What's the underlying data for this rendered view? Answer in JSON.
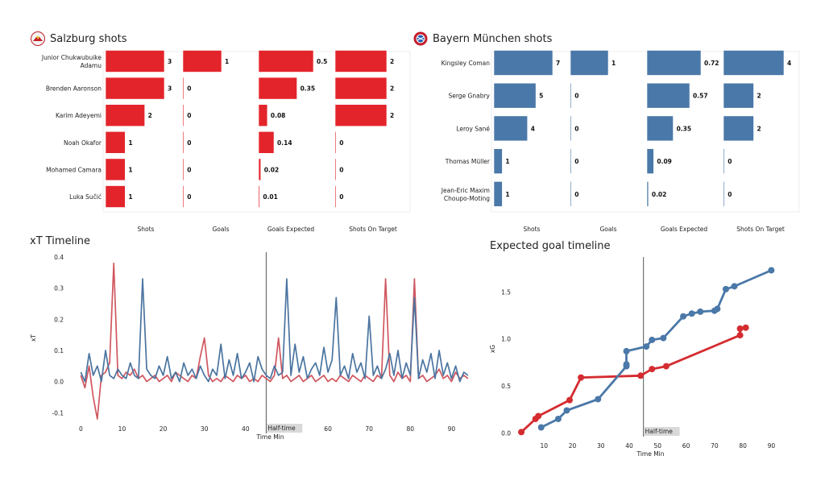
{
  "salzburg": {
    "title": "Salzburg shots",
    "color": "#e3242b",
    "players": [
      [
        "Junior Chukwubuike",
        "Adamu"
      ],
      [
        "Brenden  Aaronson"
      ],
      [
        "Karim Adeyemi"
      ],
      [
        "Noah Okafor"
      ],
      [
        "Mohamed Camara"
      ],
      [
        "Luka Sučić"
      ]
    ],
    "columns": [
      "Shots",
      "Goals",
      "Goals Expected",
      "Shots On Target"
    ],
    "values": [
      [
        3,
        1,
        0.5,
        2
      ],
      [
        3,
        0,
        0.35,
        2
      ],
      [
        2,
        0,
        0.08,
        2
      ],
      [
        1,
        0,
        0.14,
        0
      ],
      [
        1,
        0,
        0.02,
        0
      ],
      [
        1,
        0,
        0.01,
        0
      ]
    ]
  },
  "bayern": {
    "title": "Bayern München shots",
    "color": "#4a78a8",
    "players": [
      [
        "Kingsley Coman"
      ],
      [
        "Serge  Gnabry"
      ],
      [
        "Leroy Sané"
      ],
      [
        "Thomas Müller"
      ],
      [
        "Jean-Eric Maxim",
        "Choupo-Moting"
      ]
    ],
    "columns": [
      "Shots",
      "Goals",
      "Goals Expected",
      "Shots On Target"
    ],
    "values": [
      [
        7,
        1,
        0.72,
        4
      ],
      [
        5,
        0,
        0.57,
        2
      ],
      [
        4,
        0,
        0.35,
        2
      ],
      [
        1,
        0,
        0.09,
        0
      ],
      [
        1,
        0,
        0.02,
        0
      ]
    ]
  },
  "chart_data": [
    {
      "type": "bar",
      "title": "Salzburg shots",
      "categories": [
        "Junior Chukwubuike Adamu",
        "Brenden  Aaronson",
        "Karim Adeyemi",
        "Noah Okafor",
        "Mohamed Camara",
        "Luka Sučić"
      ],
      "series": [
        {
          "name": "Shots",
          "values": [
            3,
            3,
            2,
            1,
            1,
            1
          ]
        },
        {
          "name": "Goals",
          "values": [
            1,
            0,
            0,
            0,
            0,
            0
          ]
        },
        {
          "name": "Goals Expected",
          "values": [
            0.5,
            0.35,
            0.08,
            0.14,
            0.02,
            0.01
          ]
        },
        {
          "name": "Shots On Target",
          "values": [
            2,
            2,
            2,
            0,
            0,
            0
          ]
        }
      ]
    },
    {
      "type": "bar",
      "title": "Bayern München shots",
      "categories": [
        "Kingsley Coman",
        "Serge  Gnabry",
        "Leroy Sané",
        "Thomas Müller",
        "Jean-Eric Maxim Choupo-Moting"
      ],
      "series": [
        {
          "name": "Shots",
          "values": [
            7,
            5,
            4,
            1,
            1
          ]
        },
        {
          "name": "Goals",
          "values": [
            1,
            0,
            0,
            0,
            0
          ]
        },
        {
          "name": "Goals Expected",
          "values": [
            0.72,
            0.57,
            0.35,
            0.09,
            0.02
          ]
        },
        {
          "name": "Shots On Target",
          "values": [
            4,
            2,
            2,
            0,
            0
          ]
        }
      ]
    },
    {
      "type": "line",
      "title": "xT Timeline",
      "xlabel": "Time Min",
      "ylabel": "xT",
      "xlim": [
        -3,
        95
      ],
      "ylim": [
        -0.12,
        0.4
      ],
      "xticks": [
        0,
        10,
        20,
        30,
        40,
        50,
        60,
        70,
        80,
        90
      ],
      "yticks": [
        -0.1,
        0.0,
        0.1,
        0.2,
        0.3,
        0.4
      ],
      "ytick_labels": [
        "-0.1",
        "0.0",
        "0.1",
        "0.2",
        "0.3",
        "0.4"
      ],
      "halftime": {
        "x": 45,
        "label": "Half-time"
      },
      "series": [
        {
          "color": "#d0575f",
          "x": [
            0,
            1,
            2,
            3,
            4,
            5,
            6,
            7,
            8,
            9,
            10,
            11,
            12,
            13,
            14,
            15,
            16,
            17,
            18,
            19,
            20,
            21,
            22,
            23,
            24,
            25,
            26,
            27,
            28,
            29,
            30,
            31,
            32,
            33,
            34,
            35,
            36,
            37,
            38,
            39,
            40,
            41,
            42,
            43,
            44,
            45,
            46,
            47,
            48,
            49,
            50,
            51,
            52,
            53,
            54,
            55,
            56,
            57,
            58,
            59,
            60,
            61,
            62,
            63,
            64,
            65,
            66,
            67,
            68,
            69,
            70,
            71,
            72,
            73,
            74,
            75,
            76,
            77,
            78,
            79,
            80,
            81,
            82,
            83,
            84,
            85,
            86,
            87,
            88,
            89,
            90,
            91,
            92,
            93,
            94
          ],
          "y": [
            0.02,
            -0.02,
            0.05,
            -0.05,
            -0.12,
            0.02,
            0.03,
            0.06,
            0.38,
            0.02,
            0.01,
            0.03,
            0.02,
            0.04,
            0.01,
            0.02,
            0.0,
            0.01,
            0.02,
            0.0,
            0.01,
            0.02,
            0.0,
            0.03,
            0.02,
            0.01,
            0.0,
            0.02,
            0.01,
            0.08,
            0.14,
            0.02,
            0.0,
            0.01,
            0.0,
            0.02,
            0.01,
            0.0,
            0.02,
            0.01,
            0.02,
            0.0,
            0.01,
            0.0,
            0.02,
            0.01,
            0.0,
            0.02,
            0.14,
            0.01,
            0.02,
            0.0,
            0.01,
            0.02,
            0.0,
            0.01,
            0.02,
            0.0,
            0.01,
            0.02,
            0.0,
            0.01,
            0.0,
            0.02,
            0.01,
            0.0,
            0.02,
            0.01,
            0.0,
            0.02,
            0.01,
            0.0,
            0.02,
            0.01,
            0.33,
            0.02,
            0.0,
            0.03,
            0.01,
            0.02,
            0.0,
            0.33,
            0.01,
            0.02,
            0.0,
            0.01,
            0.02,
            0.04,
            0.01,
            0.02,
            0.0,
            0.03,
            0.01,
            0.02,
            0.01
          ]
        },
        {
          "color": "#4a74a0",
          "x": [
            0,
            1,
            2,
            3,
            4,
            5,
            6,
            7,
            8,
            9,
            10,
            11,
            12,
            13,
            14,
            15,
            16,
            17,
            18,
            19,
            20,
            21,
            22,
            23,
            24,
            25,
            26,
            27,
            28,
            29,
            30,
            31,
            32,
            33,
            34,
            35,
            36,
            37,
            38,
            39,
            40,
            41,
            42,
            43,
            44,
            45,
            46,
            47,
            48,
            49,
            50,
            51,
            52,
            53,
            54,
            55,
            56,
            57,
            58,
            59,
            60,
            61,
            62,
            63,
            64,
            65,
            66,
            67,
            68,
            69,
            70,
            71,
            72,
            73,
            74,
            75,
            76,
            77,
            78,
            79,
            80,
            81,
            82,
            83,
            84,
            85,
            86,
            87,
            88,
            89,
            90,
            91,
            92,
            93,
            94
          ],
          "y": [
            0.03,
            0.0,
            0.09,
            0.02,
            0.05,
            0.0,
            0.1,
            0.02,
            0.01,
            0.04,
            0.02,
            0.01,
            0.06,
            0.02,
            0.01,
            0.33,
            0.04,
            0.02,
            0.01,
            0.05,
            0.02,
            0.08,
            0.01,
            0.03,
            0.0,
            0.06,
            0.02,
            0.04,
            0.01,
            0.05,
            0.02,
            0.0,
            0.04,
            0.02,
            0.12,
            0.01,
            0.07,
            0.02,
            0.09,
            0.01,
            0.03,
            0.06,
            0.0,
            0.08,
            0.04,
            0.02,
            0.01,
            0.05,
            0.02,
            0.03,
            0.33,
            0.02,
            0.12,
            0.03,
            0.08,
            0.01,
            0.04,
            0.06,
            0.02,
            0.11,
            0.03,
            0.07,
            0.27,
            0.02,
            0.05,
            0.01,
            0.09,
            0.03,
            0.06,
            0.01,
            0.21,
            0.02,
            0.05,
            0.01,
            0.04,
            0.09,
            0.02,
            0.1,
            0.01,
            0.06,
            0.02,
            0.27,
            0.01,
            0.07,
            0.03,
            0.09,
            0.01,
            0.1,
            0.02,
            0.06,
            0.01,
            0.05,
            0.0,
            0.03,
            0.02
          ]
        }
      ]
    },
    {
      "type": "line",
      "title": "Expected goal timeline",
      "xlabel": "Time Min",
      "ylabel": "xG",
      "xlim": [
        0,
        95
      ],
      "ylim": [
        -0.03,
        1.82
      ],
      "xticks": [
        10,
        20,
        30,
        40,
        50,
        60,
        70,
        80,
        90
      ],
      "yticks": [
        0.0,
        0.5,
        1.0,
        1.5
      ],
      "ytick_labels": [
        "0.0",
        "0.5",
        "1.0",
        "1.5"
      ],
      "halftime": {
        "x": 45,
        "label": "Half-time"
      },
      "series": [
        {
          "color": "#d42c30",
          "x": [
            2,
            7,
            8,
            19,
            23,
            44,
            48,
            53,
            79,
            79,
            81
          ],
          "y": [
            0.01,
            0.15,
            0.18,
            0.35,
            0.59,
            0.61,
            0.68,
            0.71,
            1.04,
            1.11,
            1.12
          ]
        },
        {
          "color": "#4a78a8",
          "x": [
            9,
            15,
            18,
            29,
            39,
            39,
            39,
            46,
            48,
            52,
            59,
            62,
            65,
            70,
            71,
            74,
            77,
            90
          ],
          "y": [
            0.06,
            0.15,
            0.24,
            0.36,
            0.71,
            0.73,
            0.87,
            0.92,
            0.99,
            1.01,
            1.24,
            1.27,
            1.29,
            1.3,
            1.32,
            1.53,
            1.56,
            1.73
          ]
        }
      ]
    }
  ]
}
